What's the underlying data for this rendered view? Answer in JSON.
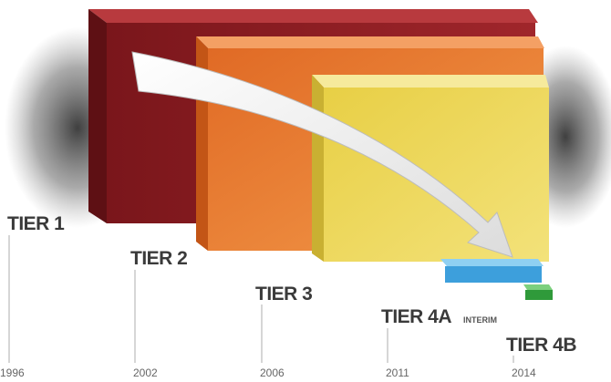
{
  "timeline": {
    "tiers": [
      {
        "label": "TIER 1",
        "year": "1996"
      },
      {
        "label": "TIER 2",
        "year": "2002"
      },
      {
        "label": "TIER 3",
        "year": "2006"
      },
      {
        "label": "TIER 4A",
        "note": "INTERIM",
        "year": "2011"
      },
      {
        "label": "TIER 4B",
        "year": "2014"
      }
    ]
  }
}
